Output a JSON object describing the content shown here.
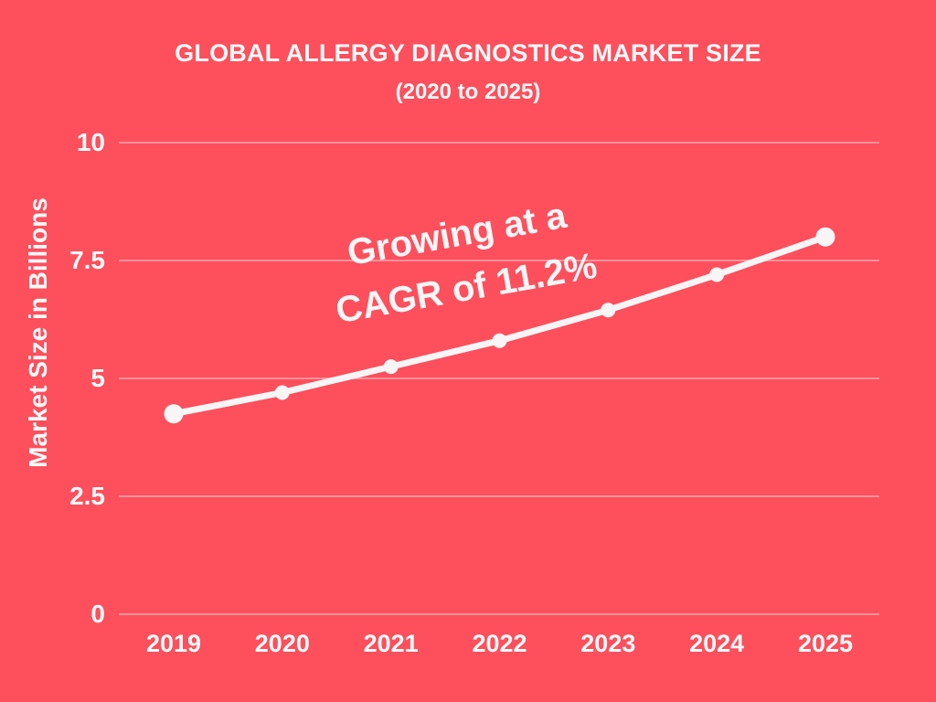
{
  "page": {
    "background_color": "#FD4F5C",
    "text_color": "#FBF9F9",
    "line_color": "#F8F5F6",
    "gridline_color": "rgba(255,255,255,0.38)"
  },
  "title": {
    "line1": "GLOBAL ALLERGY DIAGNOSTICS MARKET SIZE",
    "line2": "(2020 to 2025)"
  },
  "annotation": {
    "line1": "Growing at a",
    "line2": "CAGR of 11.2%"
  },
  "chart_data": {
    "type": "line",
    "title": "GLOBAL ALLERGY DIAGNOSTICS MARKET SIZE (2020 to 2025)",
    "categories": [
      "2019",
      "2020",
      "2021",
      "2022",
      "2023",
      "2024",
      "2025"
    ],
    "series": [
      {
        "name": "Market Size",
        "values": [
          4.25,
          4.7,
          5.25,
          5.8,
          6.45,
          7.2,
          8.0
        ]
      }
    ],
    "xlabel": "",
    "ylabel": "Market Size in Billions",
    "yticks": [
      "0",
      "2.5",
      "5",
      "7.5",
      "10"
    ],
    "ylim": [
      0,
      10
    ],
    "grid": true,
    "legend": "none",
    "annotation": "Growing at a CAGR of 11.2%"
  }
}
